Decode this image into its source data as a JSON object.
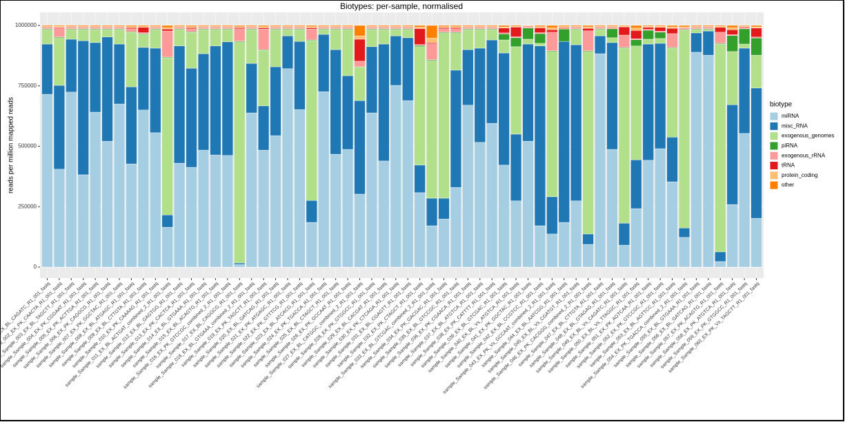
{
  "chart_data": {
    "type": "stacked_bar",
    "title": "Biotypes: per-sample, normalised",
    "y_label": "reads per million mapped reads",
    "legend_title": "biotype",
    "legend": "right",
    "grid": true,
    "ylim": [
      -45600,
      1054000
    ],
    "yticks": [
      0,
      250000,
      500000,
      750000,
      1000000
    ],
    "categories": [
      "sample_Sample_001_EX_BL_CAGATC_R1_001_fastq",
      "sample_Sample_002_EX_PK_CAACTA_R1_001_fastq",
      "sample_Sample_003_EX_BL_TAGCTT_R1_001_fastq",
      "sample_Sample_004_EX_PK_CGGAAT_R1_001_fastq",
      "sample_Sample_005_EX_PK_ACTTGA_R1_001_fastq",
      "sample_Sample_006_EX_PK_CAGGCG_R1_001_fastq",
      "sample_Sample_007_EX_PK_GGCTAC_R1_001_fastq",
      "sample_Sample_008_EX_BL_ATGAGC_R1_001_fastq",
      "sample_Sample_009_EX_BL_CTTGTA_R1_001_fastq",
      "sample_Sample_010_EX_PK_CAAAAG_R1_001_fastq",
      "sample_Sample_011_EX_BL_ACTGAT_combined_2_R1_001_fastq",
      "sample_Sample_012_EX_BL_GAGTGG_R1_001_fastq",
      "sample_Sample_013_EX_PK_CACTCA_R1_001_fastq",
      "sample_Sample_014_EX_BL_GTGAAA_R1_001_fastq",
      "sample_Sample_015_EX_BL_ACAGTG_R1_001_fastq",
      "sample_Sample_016_EX_PK_GTCCGC_combined_2_R1_001_fastq",
      "sample_Sample_017_EX_BL_CAGGCG_R1_001_fastq",
      "sample_Sample_018_EX_BL_GTGAAA_combined_2_R1_001_fastq",
      "sample_Sample_019_EX_PK_TAGCTT_R1_001_fastq",
      "sample_Sample_020_EX_BL_GATCAG_R1_001_fastq",
      "sample_Sample_021_EX_PK_ATGAGC_R1_001_fastq",
      "sample_Sample_022_EX_PK_GTTTCG_R1_001_fastq",
      "sample_Sample_023_EX_BL_ATCACG_R1_001_fastq",
      "sample_Sample_024_EX_PK_TGACCA_R1_001_fastq",
      "sample_Sample_025_EX_BL_CTAGCT_R1_001_fastq",
      "sample_Sample_026_EX_PK_GCCAAT_R1_001_fastq",
      "sample_Sample_027_EX_BL_CATGGC_combined_2_R1_001_fastq",
      "sample_Sample_028_EX_PK_GTGGCC_R1_001_fastq",
      "sample_Sample_029_EX_BL_CACGAT_R1_001_fastq",
      "sample_Sample_030_EX_PK_CTCAGA_R1_001_fastq",
      "sample_Sample_031_EX_BL_CGAGTT_R1_001_fastq",
      "sample_Sample_032_EX_PK_CTAGCT_R1_001_fastq",
      "sample_Sample_033_EX_BL_GTCGAC_combined_2_R1_001_fastq",
      "sample_Sample_034_EX_PK_GACGAC_R1_001_fastq",
      "sample_Sample_035_EX_BL_GTCCGC_R1_001_fastq",
      "sample_Sample_036_EX_PK_CGAACA_R1_001_fastq",
      "sample_Sample_037_EX_BL_ATGTCA_R1_001_fastq",
      "sample_Sample_038_EX_PK_CATTTT_R1_001_fastq",
      "sample_Sample_039_EX_BL_GTCGAC_R1_001_fastq",
      "sample_Sample_040_EX_BL_Vs_ATGTCA_R1_001_fastq",
      "sample_Sample_041_EX_PK_GGCTAC_R1_001_fastq",
      "sample_Sample_042_EX_BL_CCGTCC_R1_001_fastq",
      "sample_Sample_043_EX_PK_Vs_GCCAAT_combined_2_R1_001_fastq",
      "sample_Sample_044_EX_BL_AATCGG_R1_001_fastq",
      "sample_Sample_045_EX_BL_Vs_CGATGT_R1_001_fastq",
      "sample_Sample_046_EX_PK_CACGGG_combined_2_R1_001_fastq",
      "sample_Sample_047_EX_BL_CTTGTA_R1_001_fastq",
      "sample_Sample_048_EX_BL_GTAGAG_R1_001_fastq",
      "sample_Sample_049_EX_BL_Vs_CAGATC_R1_001_fastq",
      "sample_Sample_050_EX_BL_Vs_TTAGGC_R1_001_fastq",
      "sample_Sample_051_EX_PK_AGTCAA_R1_001_fastq",
      "sample_Sample_052_EX_PK_GTCCGC_R1_001_fastq",
      "sample_Sample_053_EX_BL_AGTTCC_R1_001_fastq",
      "sample_Sample_054_EX_PK_TGACCA_combined_2_R1_001_fastq",
      "sample_Sample_055_EX_BL_GTGAAA_R1_001_fastq",
      "sample_Sample_056_EX_BL_GATCAG_R1_001_fastq",
      "sample_Sample_057_EX_PK_ACAGTG_R1_001_fastq",
      "sample_Sample_058_EX_PK_ATGTCA_R1_001_fastq",
      "sample_Sample_059_EX_PK_GTGGCC_R1_001_fastq",
      "sample_Sample_060_EX_PK_Vs_TAGCTT_R1_001_fastq"
    ],
    "series": [
      {
        "name": "miRNA",
        "color": "#a6cee3",
        "values": [
          715000,
          405000,
          724000,
          382000,
          641000,
          521000,
          675000,
          427000,
          650000,
          556000,
          165000,
          430000,
          413000,
          484000,
          464000,
          462000,
          11000,
          638000,
          484000,
          544000,
          821000,
          652000,
          185000,
          726000,
          467000,
          487000,
          302000,
          638000,
          439000,
          752000,
          689000,
          308000,
          171000,
          199000,
          330000,
          670000,
          516000,
          595000,
          422000,
          274000,
          521000,
          171000,
          137000,
          185000,
          274000,
          94000,
          883000,
          487000,
          91000,
          242000,
          442000,
          490000,
          353000,
          123000,
          889000,
          877000,
          23000,
          259000,
          553000,
          202000
        ]
      },
      {
        "name": "misc_RNA",
        "color": "#1f78b4",
        "values": [
          208000,
          347000,
          219000,
          555000,
          288000,
          431000,
          248000,
          319000,
          259000,
          350000,
          51000,
          485000,
          410000,
          399000,
          451000,
          470000,
          6000,
          205000,
          183000,
          285000,
          136000,
          282000,
          91000,
          237000,
          433000,
          305000,
          387000,
          274000,
          484000,
          205000,
          260000,
          114000,
          114000,
          86000,
          485000,
          230000,
          390000,
          345000,
          464000,
          276000,
          402000,
          744000,
          154000,
          749000,
          646000,
          43000,
          74000,
          442000,
          91000,
          202000,
          481000,
          436000,
          185000,
          39000,
          80000,
          100000,
          40000,
          413000,
          353000,
          539000
        ]
      },
      {
        "name": "exogenous_genomes",
        "color": "#b2df8a",
        "values": [
          60000,
          197000,
          40000,
          46000,
          54000,
          31000,
          60000,
          225000,
          54000,
          77000,
          650000,
          68000,
          148000,
          100000,
          68000,
          51000,
          915000,
          140000,
          230000,
          154000,
          26000,
          49000,
          661000,
          20000,
          83000,
          191000,
          140000,
          71000,
          60000,
          26000,
          34000,
          490000,
          570000,
          684000,
          154000,
          83000,
          77000,
          43000,
          54000,
          362000,
          20000,
          11000,
          601000,
          0,
          63000,
          755000,
          26000,
          20000,
          724000,
          471000,
          20000,
          20000,
          368000,
          818000,
          14000,
          6000,
          860000,
          220000,
          17000,
          136000
        ]
      },
      {
        "name": "piRNA",
        "color": "#33a02c",
        "values": [
          3000,
          3000,
          3000,
          3000,
          3000,
          3000,
          3000,
          3000,
          3000,
          3000,
          3000,
          3000,
          3000,
          3000,
          3000,
          3000,
          3000,
          3000,
          3000,
          3000,
          3000,
          3000,
          3000,
          3000,
          3000,
          3000,
          0,
          3000,
          3000,
          3000,
          3000,
          5000,
          3000,
          3000,
          3000,
          3000,
          3000,
          3000,
          25000,
          37000,
          46000,
          40000,
          3000,
          51000,
          3000,
          3000,
          3000,
          37000,
          3000,
          26000,
          37000,
          26000,
          3000,
          3000,
          3000,
          3000,
          3000,
          66000,
          63000,
          71000
        ]
      },
      {
        "name": "exogenous_rRNA",
        "color": "#fb9a99",
        "values": [
          4000,
          37000,
          4000,
          4000,
          4000,
          4000,
          4000,
          12000,
          4000,
          4000,
          108000,
          4000,
          12000,
          4000,
          4000,
          4000,
          51000,
          4000,
          85000,
          4000,
          4000,
          4000,
          45000,
          4000,
          4000,
          4000,
          23000,
          4000,
          4000,
          4000,
          4000,
          4000,
          66000,
          14000,
          14000,
          4000,
          4000,
          4000,
          4000,
          4000,
          4000,
          4000,
          77000,
          4000,
          4000,
          83000,
          4000,
          4000,
          51000,
          4000,
          4000,
          4000,
          57000,
          4000,
          4000,
          4000,
          46000,
          4000,
          4000,
          4000
        ]
      },
      {
        "name": "tRNA",
        "color": "#e31a1c",
        "values": [
          3000,
          3000,
          3000,
          3000,
          3000,
          3000,
          3000,
          5000,
          22000,
          3000,
          8000,
          3000,
          5000,
          3000,
          3000,
          3000,
          5000,
          3000,
          5000,
          3000,
          3000,
          3000,
          5000,
          3000,
          3000,
          3000,
          91000,
          3000,
          3000,
          3000,
          3000,
          66000,
          4000,
          5000,
          5000,
          3000,
          3000,
          3000,
          20000,
          40000,
          3000,
          20000,
          10000,
          3000,
          3000,
          10000,
          3000,
          3000,
          34000,
          34000,
          8000,
          16000,
          22000,
          3000,
          3000,
          3000,
          20000,
          20000,
          4000,
          37000
        ]
      },
      {
        "name": "protein_coding",
        "color": "#fdbf6f",
        "values": [
          3000,
          4000,
          3000,
          3000,
          3000,
          3000,
          3000,
          4000,
          3000,
          3000,
          6000,
          3000,
          4000,
          3000,
          3000,
          3000,
          4000,
          3000,
          5000,
          3000,
          3000,
          3000,
          5000,
          3000,
          3000,
          3000,
          14000,
          3000,
          3000,
          3000,
          3000,
          6000,
          20000,
          4000,
          4000,
          3000,
          3000,
          3000,
          5000,
          3000,
          2000,
          5000,
          8000,
          3000,
          3000,
          6000,
          3000,
          3000,
          3000,
          10000,
          4000,
          4000,
          6000,
          4000,
          3000,
          3000,
          4000,
          9000,
          3000,
          5000
        ]
      },
      {
        "name": "other",
        "color": "#ff7f00",
        "values": [
          4000,
          4000,
          4000,
          4000,
          4000,
          4000,
          4000,
          5000,
          5000,
          4000,
          9000,
          4000,
          5000,
          4000,
          4000,
          4000,
          5000,
          4000,
          5000,
          4000,
          4000,
          4000,
          5000,
          4000,
          4000,
          4000,
          43000,
          4000,
          4000,
          4000,
          4000,
          7000,
          52000,
          5000,
          5000,
          4000,
          4000,
          4000,
          6000,
          4000,
          2000,
          5000,
          10000,
          5000,
          4000,
          6000,
          4000,
          4000,
          3000,
          11000,
          4000,
          4000,
          6000,
          6000,
          4000,
          4000,
          4000,
          9000,
          3000,
          6000
        ]
      }
    ]
  }
}
